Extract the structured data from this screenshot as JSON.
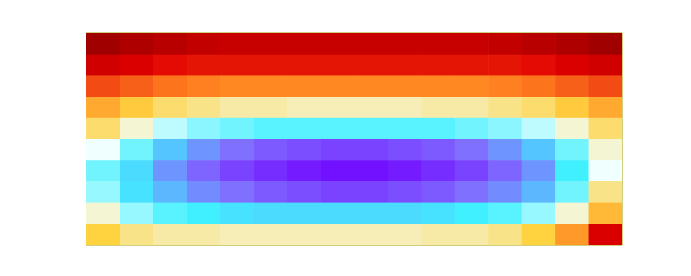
{
  "chart_data": {
    "type": "heatmap",
    "cells": [
      [
        1.0,
        0.97,
        0.95,
        0.93,
        0.92,
        0.92,
        0.92,
        0.92,
        0.92,
        0.92,
        0.92,
        0.92,
        0.93,
        0.95,
        0.97,
        1.0
      ],
      [
        0.9,
        0.88,
        0.86,
        0.85,
        0.85,
        0.85,
        0.85,
        0.85,
        0.85,
        0.85,
        0.85,
        0.85,
        0.85,
        0.86,
        0.88,
        0.9
      ],
      [
        0.8,
        0.78,
        0.76,
        0.75,
        0.74,
        0.74,
        0.74,
        0.74,
        0.74,
        0.74,
        0.74,
        0.74,
        0.75,
        0.76,
        0.78,
        0.8
      ],
      [
        0.7,
        0.66,
        0.62,
        0.6,
        0.58,
        0.58,
        0.57,
        0.57,
        0.57,
        0.57,
        0.58,
        0.58,
        0.6,
        0.62,
        0.66,
        0.7
      ],
      [
        0.62,
        0.55,
        0.48,
        0.44,
        0.42,
        0.4,
        0.4,
        0.4,
        0.4,
        0.4,
        0.4,
        0.42,
        0.44,
        0.48,
        0.55,
        0.62
      ],
      [
        0.52,
        0.42,
        0.32,
        0.25,
        0.2,
        0.16,
        0.14,
        0.12,
        0.12,
        0.14,
        0.16,
        0.2,
        0.25,
        0.32,
        0.42,
        0.55
      ],
      [
        0.42,
        0.35,
        0.25,
        0.18,
        0.12,
        0.08,
        0.05,
        0.03,
        0.03,
        0.05,
        0.08,
        0.12,
        0.18,
        0.25,
        0.38,
        0.52
      ],
      [
        0.45,
        0.36,
        0.3,
        0.24,
        0.2,
        0.16,
        0.14,
        0.12,
        0.12,
        0.14,
        0.16,
        0.2,
        0.24,
        0.3,
        0.42,
        0.6
      ],
      [
        0.55,
        0.45,
        0.4,
        0.38,
        0.36,
        0.35,
        0.35,
        0.35,
        0.35,
        0.35,
        0.36,
        0.38,
        0.4,
        0.45,
        0.55,
        0.68
      ],
      [
        0.65,
        0.6,
        0.58,
        0.58,
        0.57,
        0.57,
        0.57,
        0.57,
        0.57,
        0.57,
        0.58,
        0.58,
        0.6,
        0.65,
        0.72,
        0.88
      ]
    ],
    "xlim": [
      0,
      16
    ],
    "ylim": [
      0,
      10
    ],
    "zlim": [
      0,
      1
    ],
    "tick_labels": false
  }
}
